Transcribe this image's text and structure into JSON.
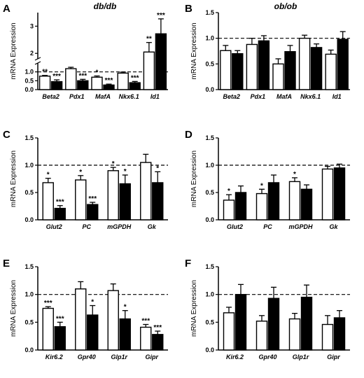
{
  "figure": {
    "colors": {
      "wt_fill": "#ffffff",
      "mut_fill": "#000000",
      "stroke": "#000000",
      "reference_line": "#000000"
    },
    "legend": "none"
  },
  "chart_data": [
    {
      "panel": "A",
      "title": "db/db",
      "type": "bar",
      "ylabel": "mRNA Expression",
      "axis_break": true,
      "ylim_lower": [
        0,
        1.5
      ],
      "ylim_upper": [
        1.8,
        3.5
      ],
      "yticks_lower": [
        "0.0",
        "0.5",
        "1.0"
      ],
      "yticks_upper": [
        "2",
        "3"
      ],
      "reference_line": 1.0,
      "categories": [
        "Beta2",
        "Pdx1",
        "MafA",
        "Nkx6.1",
        "Id1"
      ],
      "series": [
        {
          "fill": "white",
          "values": [
            0.76,
            1.18,
            0.7,
            0.93,
            2.05
          ],
          "errors": [
            0.04,
            0.08,
            0.07,
            0.06,
            0.35
          ],
          "sig": [
            "**",
            "",
            "*",
            "",
            "**"
          ]
        },
        {
          "fill": "black",
          "values": [
            0.45,
            0.5,
            0.26,
            0.39,
            2.72
          ],
          "errors": [
            0.1,
            0.08,
            0.05,
            0.07,
            0.55
          ],
          "sig": [
            "***",
            "***",
            "***",
            "***",
            "***"
          ]
        }
      ]
    },
    {
      "panel": "B",
      "title": "ob/ob",
      "type": "bar",
      "ylabel": "mRNA Expression",
      "ylim": [
        0,
        1.5
      ],
      "yticks": [
        "0.0",
        "0.5",
        "1.0",
        "1.5"
      ],
      "reference_line": 1.0,
      "categories": [
        "Beta2",
        "Pdx1",
        "MafA",
        "Nkx6.1",
        "Id1"
      ],
      "series": [
        {
          "fill": "white",
          "values": [
            0.76,
            0.88,
            0.5,
            1.0,
            0.69
          ],
          "errors": [
            0.1,
            0.12,
            0.1,
            0.06,
            0.08
          ],
          "sig": [
            "",
            "",
            "",
            "",
            ""
          ]
        },
        {
          "fill": "black",
          "values": [
            0.7,
            0.95,
            0.74,
            0.82,
            0.98
          ],
          "errors": [
            0.06,
            0.1,
            0.12,
            0.07,
            0.15
          ],
          "sig": [
            "",
            "",
            "",
            "",
            ""
          ]
        }
      ]
    },
    {
      "panel": "C",
      "title": "",
      "type": "bar",
      "ylabel": "mRNA Expression",
      "ylim": [
        0,
        1.5
      ],
      "yticks": [
        "0.0",
        "0.5",
        "1.0",
        "1.5"
      ],
      "reference_line": 1.0,
      "categories": [
        "Glut2",
        "PC",
        "mGPDH",
        "Gk"
      ],
      "series": [
        {
          "fill": "white",
          "values": [
            0.68,
            0.73,
            0.9,
            1.05
          ],
          "errors": [
            0.08,
            0.08,
            0.06,
            0.15
          ],
          "sig": [
            "*",
            "*",
            "*",
            ""
          ]
        },
        {
          "fill": "black",
          "values": [
            0.21,
            0.28,
            0.66,
            0.68
          ],
          "errors": [
            0.05,
            0.04,
            0.16,
            0.2
          ],
          "sig": [
            "***",
            "***",
            "*",
            "*"
          ]
        }
      ]
    },
    {
      "panel": "D",
      "title": "",
      "type": "bar",
      "ylabel": "mRNA Expression",
      "ylim": [
        0,
        1.5
      ],
      "yticks": [
        "0.0",
        "0.5",
        "1.0",
        "1.5"
      ],
      "reference_line": 1.0,
      "categories": [
        "Glut2",
        "PC",
        "mGPDH",
        "Gk"
      ],
      "series": [
        {
          "fill": "white",
          "values": [
            0.36,
            0.48,
            0.7,
            0.93
          ],
          "errors": [
            0.1,
            0.08,
            0.07,
            0.05
          ],
          "sig": [
            "*",
            "*",
            "*",
            ""
          ]
        },
        {
          "fill": "black",
          "values": [
            0.5,
            0.68,
            0.56,
            0.95
          ],
          "errors": [
            0.12,
            0.14,
            0.08,
            0.07
          ],
          "sig": [
            "",
            "",
            "",
            ""
          ]
        }
      ]
    },
    {
      "panel": "E",
      "title": "",
      "type": "bar",
      "ylabel": "mRNA Expression",
      "ylim": [
        0,
        1.5
      ],
      "yticks": [
        "0.0",
        "0.5",
        "1.0",
        "1.5"
      ],
      "reference_line": 1.0,
      "categories": [
        "Kir6.2",
        "Gpr40",
        "Glp1r",
        "Gipr"
      ],
      "series": [
        {
          "fill": "white",
          "values": [
            0.75,
            1.1,
            1.07,
            0.41
          ],
          "errors": [
            0.03,
            0.13,
            0.12,
            0.05
          ],
          "sig": [
            "***",
            "",
            "",
            "***"
          ]
        },
        {
          "fill": "black",
          "values": [
            0.42,
            0.63,
            0.56,
            0.28
          ],
          "errors": [
            0.08,
            0.17,
            0.15,
            0.06
          ],
          "sig": [
            "***",
            "*",
            "*",
            "***"
          ]
        }
      ]
    },
    {
      "panel": "F",
      "title": "",
      "type": "bar",
      "ylabel": "mRNA Expression",
      "ylim": [
        0,
        1.5
      ],
      "yticks": [
        "0.0",
        "0.5",
        "1.0",
        "1.5"
      ],
      "reference_line": 1.0,
      "categories": [
        "Kir6.2",
        "Gpr40",
        "Glp1r",
        "Gipr"
      ],
      "series": [
        {
          "fill": "white",
          "values": [
            0.67,
            0.52,
            0.56,
            0.46
          ],
          "errors": [
            0.1,
            0.1,
            0.1,
            0.16
          ],
          "sig": [
            "",
            "",
            "",
            ""
          ]
        },
        {
          "fill": "black",
          "values": [
            1.0,
            0.93,
            0.95,
            0.58
          ],
          "errors": [
            0.18,
            0.2,
            0.22,
            0.13
          ],
          "sig": [
            "",
            "",
            "",
            ""
          ]
        }
      ]
    }
  ]
}
